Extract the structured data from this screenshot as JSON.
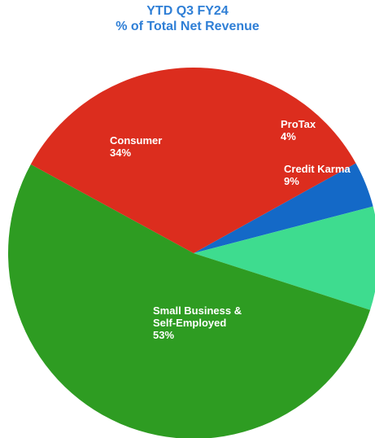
{
  "chart_data": {
    "type": "pie",
    "title": "YTD Q3 FY24",
    "subtitle": "% of Total Net Revenue",
    "slices": [
      {
        "name": "ProTax",
        "value": 4,
        "value_label": "4%",
        "color": "#1469c7"
      },
      {
        "name": "Credit Karma",
        "value": 9,
        "value_label": "9%",
        "color": "#3edc8f"
      },
      {
        "name": "Small Business & Self-Employed",
        "value": 53,
        "value_label": "53%",
        "color": "#2e9c22"
      },
      {
        "name": "Consumer",
        "value": 34,
        "value_label": "34%",
        "color": "#dc2d1e"
      }
    ]
  }
}
